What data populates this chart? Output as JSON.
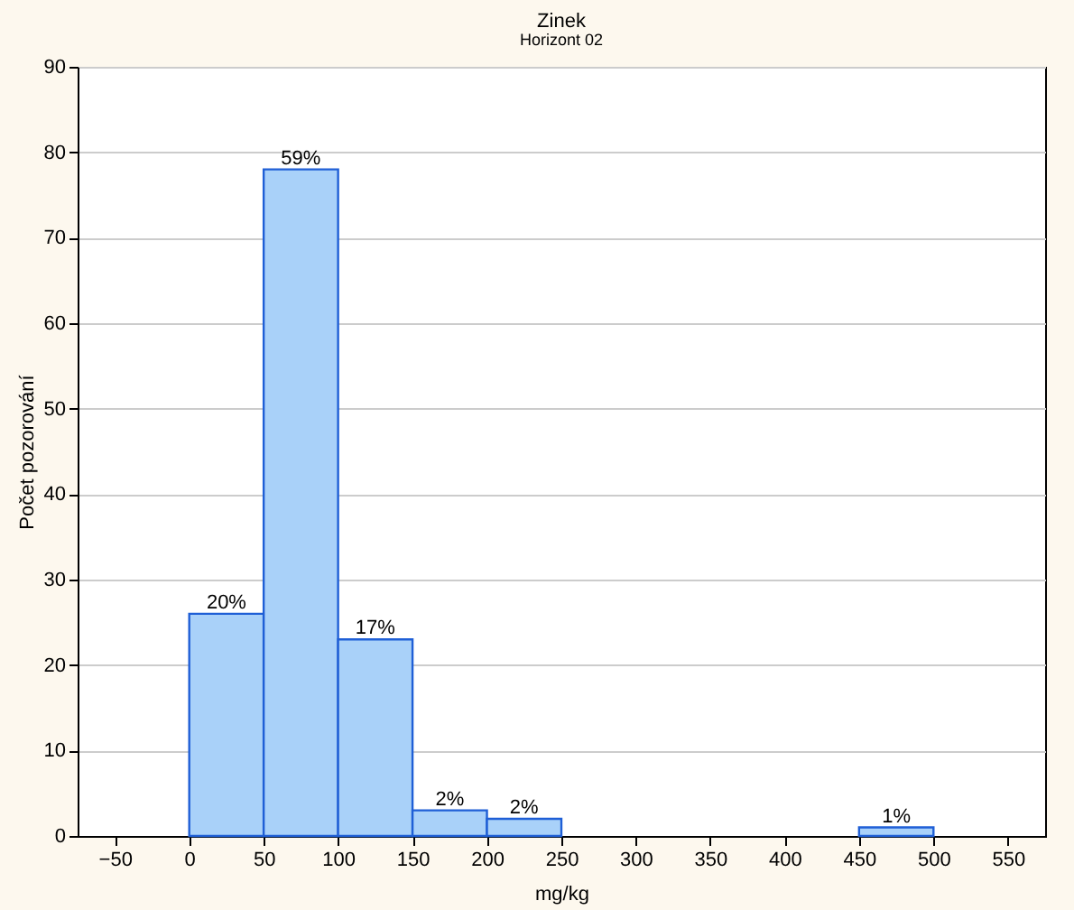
{
  "chart_data": {
    "type": "histogram",
    "title": "Zinek",
    "subtitle": "Horizont 02",
    "xlabel": "mg/kg",
    "ylabel": "Počet pozorování",
    "bins": [
      -50,
      0,
      50,
      100,
      150,
      200,
      250,
      300,
      350,
      400,
      450,
      500,
      550
    ],
    "values": [
      0,
      26,
      78,
      23,
      3,
      2,
      0,
      0,
      0,
      0,
      1,
      0
    ],
    "annotations": [
      {
        "text": "20%",
        "x": 25,
        "y": 26
      },
      {
        "text": "59%",
        "x": 75,
        "y": 78
      },
      {
        "text": "17%",
        "x": 125,
        "y": 23
      },
      {
        "text": "2%",
        "x": 175,
        "y": 3
      },
      {
        "text": "2%",
        "x": 225,
        "y": 2
      },
      {
        "text": "1%",
        "x": 475,
        "y": 1
      }
    ],
    "color": "#a9d1f9",
    "xlim": [
      -75,
      575
    ],
    "xticks": [
      -50,
      0,
      50,
      100,
      150,
      200,
      250,
      300,
      350,
      400,
      450,
      500,
      550
    ],
    "ylim": [
      0,
      90
    ],
    "yticks": [
      0,
      10,
      20,
      30,
      40,
      50,
      60,
      70,
      80,
      90
    ],
    "grid": "y",
    "legend": false
  }
}
